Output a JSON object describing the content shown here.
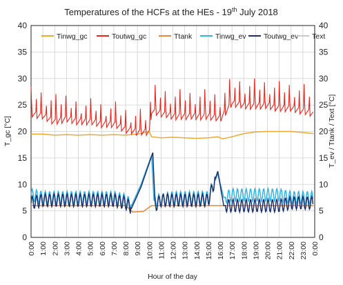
{
  "chart_data": {
    "type": "line",
    "title_main": "Temperatures of the HCFs at the HEs - 19",
    "title_sup": "th",
    "title_tail": " July 2018",
    "xlabel": "Hour of the day",
    "ylabel_left": "T_gc [°C]",
    "ylabel_right": "T_ev / Ttank / Text [°C]",
    "xlim": [
      0,
      24
    ],
    "ylim_left": [
      0,
      40
    ],
    "ylim_right": [
      0,
      40
    ],
    "y_ticks": [
      "0",
      "5",
      "10",
      "15",
      "20",
      "25",
      "30",
      "35",
      "40"
    ],
    "x_ticks": [
      "0:00",
      "1:00",
      "2:00",
      "3:00",
      "4:00",
      "5:00",
      "6:00",
      "7:00",
      "8:00",
      "9:00",
      "10:00",
      "11:00",
      "12:00",
      "13:00",
      "14:00",
      "15:00",
      "16:00",
      "17:00",
      "18:00",
      "19:00",
      "20:00",
      "21:00",
      "22:00",
      "23:00",
      "0:00"
    ],
    "grid": true,
    "legend_position": "top",
    "series": [
      {
        "name": "Tinwg_gc",
        "color": "#F0A830",
        "axis": "left",
        "x": [
          0,
          1,
          2,
          3,
          4,
          5,
          6,
          7,
          8,
          9,
          10,
          10.2,
          11,
          12,
          13,
          14,
          15,
          15.8,
          16.2,
          17,
          18,
          19,
          20,
          21,
          22,
          23,
          23.9
        ],
        "y": [
          19.5,
          19.5,
          19.3,
          19.4,
          19.3,
          19.4,
          19.3,
          19.4,
          19.3,
          19.5,
          20.0,
          19.0,
          18.8,
          18.9,
          18.8,
          18.7,
          18.8,
          19.0,
          18.6,
          19.0,
          19.6,
          19.9,
          20.0,
          20.0,
          20.0,
          19.8,
          19.6
        ]
      },
      {
        "name": "Toutwg_gc",
        "color": "#E8251C",
        "axis": "left",
        "x": [
          0,
          1,
          2,
          3,
          4,
          5,
          6,
          7,
          8,
          9,
          10,
          10.2,
          11,
          12,
          13,
          14,
          15,
          16,
          17,
          18,
          19,
          20,
          21,
          22,
          23,
          23.9
        ],
        "y": [
          24,
          23.5,
          22.5,
          23,
          22.5,
          22.5,
          22,
          22,
          21,
          20.5,
          20.5,
          24.5,
          24,
          23.5,
          23.5,
          23.5,
          23.5,
          23,
          26,
          25.5,
          25.5,
          25.5,
          25,
          25,
          24.5,
          24
        ],
        "oscillation": 4.5
      },
      {
        "name": "Ttank",
        "color": "#E8863A",
        "axis": "right",
        "x": [
          0,
          1,
          2,
          3,
          4,
          5,
          6,
          7,
          8,
          8.6,
          9.5,
          10.2,
          11,
          12,
          13,
          14,
          15,
          15.8,
          16.3,
          17,
          18,
          19,
          20,
          21,
          22,
          23,
          23.9
        ],
        "y": [
          6,
          6,
          6,
          6,
          6,
          6,
          6,
          6,
          6,
          4.8,
          4.9,
          6,
          6,
          6,
          6,
          6,
          6,
          6,
          6,
          6,
          6,
          6,
          6,
          6,
          6,
          6,
          6
        ]
      },
      {
        "name": "Tinwg_ev",
        "color": "#2FB4E6",
        "axis": "right",
        "x": [
          0,
          1,
          2,
          3,
          4,
          5,
          6,
          7,
          8,
          8.5,
          9.3,
          10.2,
          10.4,
          11,
          12,
          13,
          14,
          15,
          15.8,
          16.3,
          17,
          18,
          19,
          20,
          21,
          22,
          23,
          23.9
        ],
        "y": [
          8,
          7.5,
          7.5,
          7.5,
          7.5,
          7.5,
          7.5,
          7.5,
          7,
          6,
          10,
          15.5,
          7,
          7,
          7.5,
          7.5,
          7.5,
          7.5,
          12,
          7.5,
          8,
          8,
          8,
          8,
          8,
          7.5,
          7.5,
          7.5
        ]
      },
      {
        "name": "Toutwg_ev",
        "color": "#1A2E6E",
        "axis": "right",
        "x": [
          0,
          1,
          2,
          3,
          4,
          5,
          6,
          7,
          8,
          8.5,
          9.3,
          10.3,
          10.5,
          11,
          12,
          13,
          14,
          15,
          15.8,
          16.3,
          17,
          18,
          19,
          20,
          21,
          22,
          23,
          23.9
        ],
        "y": [
          6.5,
          7,
          7,
          7,
          7,
          7,
          7,
          7,
          6.5,
          5.5,
          9.5,
          16,
          6,
          7,
          7,
          7,
          7,
          7,
          12.5,
          6,
          6,
          6,
          6,
          6,
          6,
          6.5,
          6.5,
          6.5
        ]
      },
      {
        "name": "Text",
        "color": "#C8C8C8",
        "axis": "right",
        "x": [],
        "y": []
      }
    ]
  }
}
